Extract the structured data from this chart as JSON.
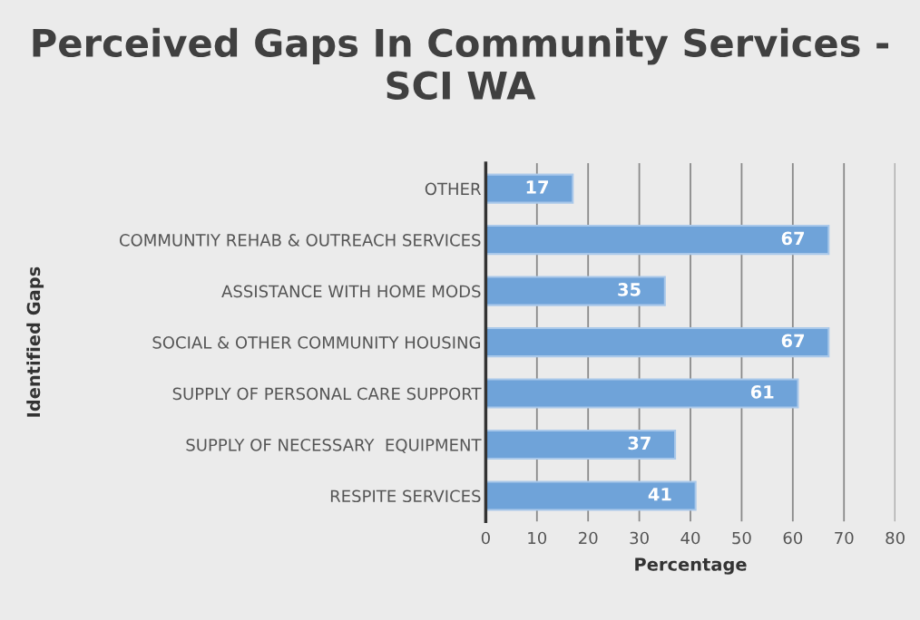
{
  "chart_data": {
    "type": "bar",
    "orientation": "horizontal",
    "title": "Perceived Gaps In Community Services - SCI WA",
    "xlabel": "Percentage",
    "ylabel": "Identified Gaps",
    "categories": [
      "OTHER",
      "COMMUNTIY REHAB & OUTREACH SERVICES",
      "ASSISTANCE WITH HOME MODS",
      "SOCIAL & OTHER COMMUNITY HOUSING",
      "SUPPLY OF PERSONAL CARE SUPPORT",
      "SUPPLY OF NECESSARY  EQUIPMENT",
      "RESPITE SERVICES"
    ],
    "values": [
      17,
      67,
      35,
      67,
      61,
      37,
      41
    ],
    "color": "#6fa3d9",
    "xlim": [
      0,
      80
    ],
    "xticks": [
      0,
      10,
      20,
      30,
      40,
      50,
      60,
      70,
      80
    ],
    "grid": "x",
    "data_labels": true
  }
}
